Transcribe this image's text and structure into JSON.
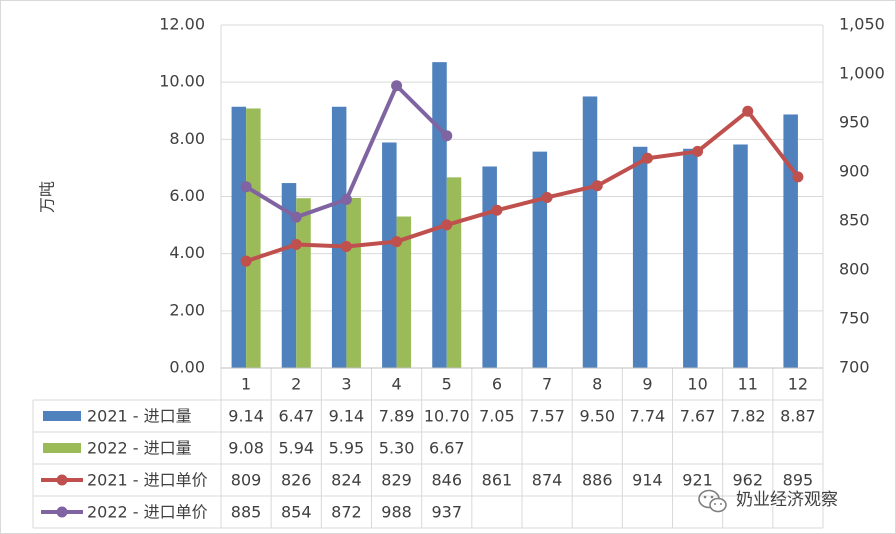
{
  "chart_data": {
    "type": "bar",
    "categories": [
      "1",
      "2",
      "3",
      "4",
      "5",
      "6",
      "7",
      "8",
      "9",
      "10",
      "11",
      "12"
    ],
    "ylabel": "万吨",
    "ylim": [
      0,
      12
    ],
    "y_ticks": [
      "0.00",
      "2.00",
      "4.00",
      "6.00",
      "8.00",
      "10.00",
      "12.00"
    ],
    "y2lim": [
      700,
      1050
    ],
    "y2_ticks": [
      "700",
      "750",
      "800",
      "850",
      "900",
      "950",
      "1,000",
      "1,050"
    ],
    "grid": true,
    "legend_placement": "data-table",
    "series": [
      {
        "name": "2021 - 进口量",
        "type": "bar",
        "axis": "left",
        "color": "#4f81bd",
        "values": [
          9.14,
          6.47,
          9.14,
          7.89,
          10.7,
          7.05,
          7.57,
          9.5,
          7.74,
          7.67,
          7.82,
          8.87
        ],
        "labels": [
          "9.14",
          "6.47",
          "9.14",
          "7.89",
          "10.70",
          "7.05",
          "7.57",
          "9.50",
          "7.74",
          "7.67",
          "7.82",
          "8.87"
        ]
      },
      {
        "name": "2022 - 进口量",
        "type": "bar",
        "axis": "left",
        "color": "#9bbb59",
        "values": [
          9.08,
          5.94,
          5.95,
          5.3,
          6.67,
          null,
          null,
          null,
          null,
          null,
          null,
          null
        ],
        "labels": [
          "9.08",
          "5.94",
          "5.95",
          "5.30",
          "6.67",
          "",
          "",
          "",
          "",
          "",
          "",
          ""
        ]
      },
      {
        "name": "2021 - 进口单价",
        "type": "line",
        "axis": "right",
        "color": "#c0504d",
        "values": [
          809,
          826,
          824,
          829,
          846,
          861,
          874,
          886,
          914,
          921,
          962,
          895
        ],
        "labels": [
          "809",
          "826",
          "824",
          "829",
          "846",
          "861",
          "874",
          "886",
          "914",
          "921",
          "962",
          "895"
        ]
      },
      {
        "name": "2022 - 进口单价",
        "type": "line",
        "axis": "right",
        "color": "#8064a2",
        "values": [
          885,
          854,
          872,
          988,
          937,
          null,
          null,
          null,
          null,
          null,
          null,
          null
        ],
        "labels": [
          "885",
          "854",
          "872",
          "988",
          "937",
          "",
          "",
          "",
          "",
          "",
          "",
          ""
        ]
      }
    ]
  },
  "watermark": {
    "text": "奶业经济观察",
    "icon": "wechat-icon"
  }
}
